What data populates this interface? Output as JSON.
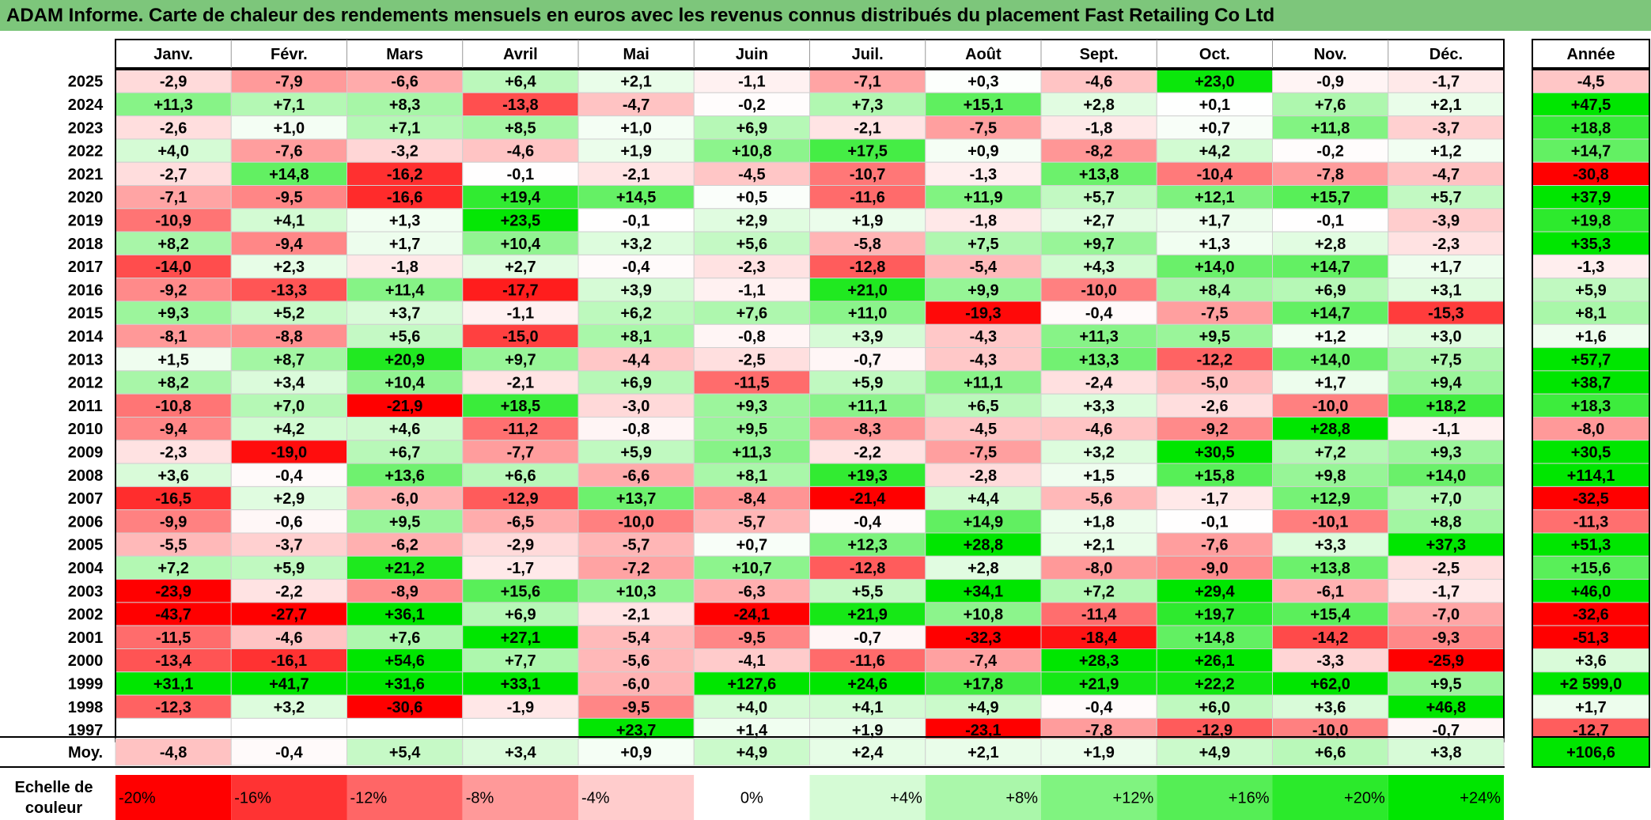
{
  "title": "ADAM Informe. Carte de chaleur des rendements mensuels en euros avec les revenus connus distribués du placement Fast Retailing Co Ltd",
  "chart_data": {
    "type": "heatmap",
    "months": [
      "Janv.",
      "Févr.",
      "Mars",
      "Avril",
      "Mai",
      "Juin",
      "Juil.",
      "Août",
      "Sept.",
      "Oct.",
      "Nov.",
      "Déc."
    ],
    "annual_label": "Année",
    "rows": [
      {
        "year": "2025",
        "values": [
          "-2,9",
          "-7,9",
          "-6,6",
          "+6,4",
          "+2,1",
          "-1,1",
          "-7,1",
          "+0,3",
          "-4,6",
          "+23,0",
          "-0,9",
          "-1,7"
        ],
        "annual": "-4,5"
      },
      {
        "year": "2024",
        "values": [
          "+11,3",
          "+7,1",
          "+8,3",
          "-13,8",
          "-4,7",
          "-0,2",
          "+7,3",
          "+15,1",
          "+2,8",
          "+0,1",
          "+7,6",
          "+2,1"
        ],
        "annual": "+47,5"
      },
      {
        "year": "2023",
        "values": [
          "-2,6",
          "+1,0",
          "+7,1",
          "+8,5",
          "+1,0",
          "+6,9",
          "-2,1",
          "-7,5",
          "-1,8",
          "+0,7",
          "+11,8",
          "-3,7"
        ],
        "annual": "+18,8"
      },
      {
        "year": "2022",
        "values": [
          "+4,0",
          "-7,6",
          "-3,2",
          "-4,6",
          "+1,9",
          "+10,8",
          "+17,5",
          "+0,9",
          "-8,2",
          "+4,2",
          "-0,2",
          "+1,2"
        ],
        "annual": "+14,7"
      },
      {
        "year": "2021",
        "values": [
          "-2,7",
          "+14,8",
          "-16,2",
          "-0,1",
          "-2,1",
          "-4,5",
          "-10,7",
          "-1,3",
          "+13,8",
          "-10,4",
          "-7,8",
          "-4,7"
        ],
        "annual": "-30,8"
      },
      {
        "year": "2020",
        "values": [
          "-7,1",
          "-9,5",
          "-16,6",
          "+19,4",
          "+14,5",
          "+0,5",
          "-11,6",
          "+11,9",
          "+5,7",
          "+12,1",
          "+15,7",
          "+5,7"
        ],
        "annual": "+37,9"
      },
      {
        "year": "2019",
        "values": [
          "-10,9",
          "+4,1",
          "+1,3",
          "+23,5",
          "-0,1",
          "+2,9",
          "+1,9",
          "-1,8",
          "+2,7",
          "+1,7",
          "-0,1",
          "-3,9"
        ],
        "annual": "+19,8"
      },
      {
        "year": "2018",
        "values": [
          "+8,2",
          "-9,4",
          "+1,7",
          "+10,4",
          "+3,2",
          "+5,6",
          "-5,8",
          "+7,5",
          "+9,7",
          "+1,3",
          "+2,8",
          "-2,3"
        ],
        "annual": "+35,3"
      },
      {
        "year": "2017",
        "values": [
          "-14,0",
          "+2,3",
          "-1,8",
          "+2,7",
          "-0,4",
          "-2,3",
          "-12,8",
          "-5,4",
          "+4,3",
          "+14,0",
          "+14,7",
          "+1,7"
        ],
        "annual": "-1,3"
      },
      {
        "year": "2016",
        "values": [
          "-9,2",
          "-13,3",
          "+11,4",
          "-17,7",
          "+3,9",
          "-1,1",
          "+21,0",
          "+9,9",
          "-10,0",
          "+8,4",
          "+6,9",
          "+3,1"
        ],
        "annual": "+5,9"
      },
      {
        "year": "2015",
        "values": [
          "+9,3",
          "+5,2",
          "+3,7",
          "-1,1",
          "+6,2",
          "+7,6",
          "+11,0",
          "-19,3",
          "-0,4",
          "-7,5",
          "+14,7",
          "-15,3"
        ],
        "annual": "+8,1"
      },
      {
        "year": "2014",
        "values": [
          "-8,1",
          "-8,8",
          "+5,6",
          "-15,0",
          "+8,1",
          "-0,8",
          "+3,9",
          "-4,3",
          "+11,3",
          "+9,5",
          "+1,2",
          "+3,0"
        ],
        "annual": "+1,6"
      },
      {
        "year": "2013",
        "values": [
          "+1,5",
          "+8,7",
          "+20,9",
          "+9,7",
          "-4,4",
          "-2,5",
          "-0,7",
          "-4,3",
          "+13,3",
          "-12,2",
          "+14,0",
          "+7,5"
        ],
        "annual": "+57,7"
      },
      {
        "year": "2012",
        "values": [
          "+8,2",
          "+3,4",
          "+10,4",
          "-2,1",
          "+6,9",
          "-11,5",
          "+5,9",
          "+11,1",
          "-2,4",
          "-5,0",
          "+1,7",
          "+9,4"
        ],
        "annual": "+38,7"
      },
      {
        "year": "2011",
        "values": [
          "-10,8",
          "+7,0",
          "-21,9",
          "+18,5",
          "-3,0",
          "+9,3",
          "+11,1",
          "+6,5",
          "+3,3",
          "-2,6",
          "-10,0",
          "+18,2"
        ],
        "annual": "+18,3"
      },
      {
        "year": "2010",
        "values": [
          "-9,4",
          "+4,2",
          "+4,6",
          "-11,2",
          "-0,8",
          "+9,5",
          "-8,3",
          "-4,5",
          "-4,6",
          "-9,2",
          "+28,8",
          "-1,1"
        ],
        "annual": "-8,0"
      },
      {
        "year": "2009",
        "values": [
          "-2,3",
          "-19,0",
          "+6,7",
          "-7,7",
          "+5,9",
          "+11,3",
          "-2,2",
          "-7,5",
          "+3,2",
          "+30,5",
          "+7,2",
          "+9,3"
        ],
        "annual": "+30,5"
      },
      {
        "year": "2008",
        "values": [
          "+3,6",
          "-0,4",
          "+13,6",
          "+6,6",
          "-6,6",
          "+8,1",
          "+19,3",
          "-2,8",
          "+1,5",
          "+15,8",
          "+9,8",
          "+14,0"
        ],
        "annual": "+114,1"
      },
      {
        "year": "2007",
        "values": [
          "-16,5",
          "+2,9",
          "-6,0",
          "-12,9",
          "+13,7",
          "-8,4",
          "-21,4",
          "+4,4",
          "-5,6",
          "-1,7",
          "+12,9",
          "+7,0"
        ],
        "annual": "-32,5"
      },
      {
        "year": "2006",
        "values": [
          "-9,9",
          "-0,6",
          "+9,5",
          "-6,5",
          "-10,0",
          "-5,7",
          "-0,4",
          "+14,9",
          "+1,8",
          "-0,1",
          "-10,1",
          "+8,8"
        ],
        "annual": "-11,3"
      },
      {
        "year": "2005",
        "values": [
          "-5,5",
          "-3,7",
          "-6,2",
          "-2,9",
          "-5,7",
          "+0,7",
          "+12,3",
          "+28,8",
          "+2,1",
          "-7,6",
          "+3,3",
          "+37,3"
        ],
        "annual": "+51,3"
      },
      {
        "year": "2004",
        "values": [
          "+7,2",
          "+5,9",
          "+21,2",
          "-1,7",
          "-7,2",
          "+10,7",
          "-12,8",
          "+2,8",
          "-8,0",
          "-9,0",
          "+13,8",
          "-2,5"
        ],
        "annual": "+15,6"
      },
      {
        "year": "2003",
        "values": [
          "-23,9",
          "-2,2",
          "-8,9",
          "+15,6",
          "+10,3",
          "-6,3",
          "+5,5",
          "+34,1",
          "+7,2",
          "+29,4",
          "-6,1",
          "-1,7"
        ],
        "annual": "+46,0"
      },
      {
        "year": "2002",
        "values": [
          "-43,7",
          "-27,7",
          "+36,1",
          "+6,9",
          "-2,1",
          "-24,1",
          "+21,9",
          "+10,8",
          "-11,4",
          "+19,7",
          "+15,4",
          "-7,0"
        ],
        "annual": "-32,6"
      },
      {
        "year": "2001",
        "values": [
          "-11,5",
          "-4,6",
          "+7,6",
          "+27,1",
          "-5,4",
          "-9,5",
          "-0,7",
          "-32,3",
          "-18,4",
          "+14,8",
          "-14,2",
          "-9,3"
        ],
        "annual": "-51,3"
      },
      {
        "year": "2000",
        "values": [
          "-13,4",
          "-16,1",
          "+54,6",
          "+7,7",
          "-5,6",
          "-4,1",
          "-11,6",
          "-7,4",
          "+28,3",
          "+26,1",
          "-3,3",
          "-25,9"
        ],
        "annual": "+3,6"
      },
      {
        "year": "1999",
        "values": [
          "+31,1",
          "+41,7",
          "+31,6",
          "+33,1",
          "-6,0",
          "+127,6",
          "+24,6",
          "+17,8",
          "+21,9",
          "+22,2",
          "+62,0",
          "+9,5"
        ],
        "annual": "+2 599,0"
      },
      {
        "year": "1998",
        "values": [
          "-12,3",
          "+3,2",
          "-30,6",
          "-1,9",
          "-9,5",
          "+4,0",
          "+4,1",
          "+4,9",
          "-0,4",
          "+6,0",
          "+3,6",
          "+46,8"
        ],
        "annual": "+1,7"
      },
      {
        "year": "1997",
        "values": [
          "",
          "",
          "",
          "",
          "+23,7",
          "+1,4",
          "+1,9",
          "-23,1",
          "-7,8",
          "-12,9",
          "-10,0",
          "-0,7"
        ],
        "annual": "-12,7"
      }
    ],
    "average": {
      "label": "Moy.",
      "values": [
        "-4,8",
        "-0,4",
        "+5,4",
        "+3,4",
        "+0,9",
        "+4,9",
        "+2,4",
        "+2,1",
        "+1,9",
        "+4,9",
        "+6,6",
        "+3,8"
      ],
      "annual": "+106,6"
    },
    "scale": {
      "label_line1": "Echelle de",
      "label_line2": "couleur",
      "steps": [
        {
          "label": "-20%",
          "value": -20
        },
        {
          "label": "-16%",
          "value": -16
        },
        {
          "label": "-12%",
          "value": -12
        },
        {
          "label": "-8%",
          "value": -8
        },
        {
          "label": "-4%",
          "value": -4
        },
        {
          "label": "0%",
          "value": 0
        },
        {
          "label": "+4%",
          "value": 4
        },
        {
          "label": "+8%",
          "value": 8
        },
        {
          "label": "+12%",
          "value": 12
        },
        {
          "label": "+16%",
          "value": 16
        },
        {
          "label": "+20%",
          "value": 20
        },
        {
          "label": "+24%",
          "value": 24
        }
      ]
    },
    "colors": {
      "negative_max": "#ff0000",
      "neutral": "#ffffff",
      "positive_max": "#00e600",
      "title_bg": "#7dc67b"
    }
  }
}
